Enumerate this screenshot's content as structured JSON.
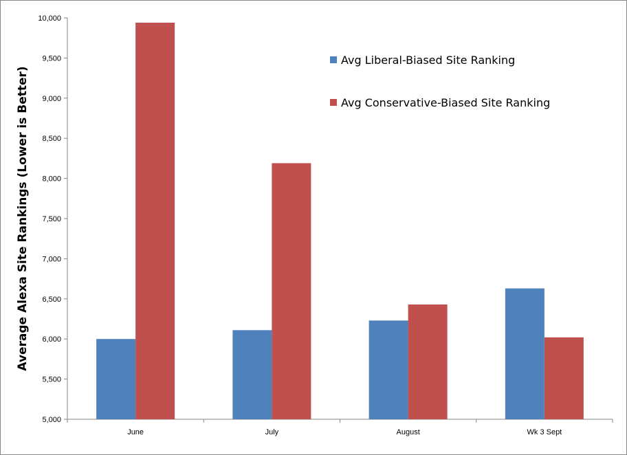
{
  "chart_data": {
    "type": "bar",
    "categories": [
      "June",
      "July",
      "August",
      "Wk 3 Sept"
    ],
    "series": [
      {
        "name": "Avg Liberal-Biased Site Ranking",
        "color": "#4f81bd",
        "values": [
          6000,
          6110,
          6230,
          6630
        ]
      },
      {
        "name": "Avg Conservative-Biased Site Ranking",
        "color": "#c0504d",
        "values": [
          9940,
          8190,
          6430,
          6020
        ]
      }
    ],
    "title": "",
    "xlabel": "",
    "ylabel": "Average Alexa Site Rankings (Lower is Better)",
    "ylim": [
      5000,
      10000
    ],
    "yticks": [
      5000,
      5500,
      6000,
      6500,
      7000,
      7500,
      8000,
      8500,
      9000,
      9500,
      10000
    ],
    "ytick_labels": [
      "5,000",
      "5,500",
      "6,000",
      "6,500",
      "7,000",
      "7,500",
      "8,000",
      "8,500",
      "9,000",
      "9,500",
      "10,000"
    ],
    "grid": false,
    "legend_position": "top-right"
  }
}
